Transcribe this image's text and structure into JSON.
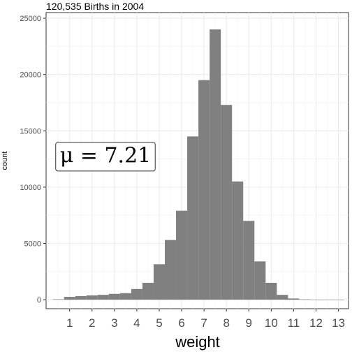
{
  "chart_data": {
    "type": "bar",
    "title": "120,535 Births in 2004",
    "xlabel": "weight",
    "ylabel": "count",
    "bin_width": 0.5,
    "bins": [
      {
        "x0": 0.25,
        "x1": 0.75,
        "count": 40
      },
      {
        "x0": 0.75,
        "x1": 1.25,
        "count": 250
      },
      {
        "x0": 1.25,
        "x1": 1.75,
        "count": 320
      },
      {
        "x0": 1.75,
        "x1": 2.25,
        "count": 380
      },
      {
        "x0": 2.25,
        "x1": 2.75,
        "count": 430
      },
      {
        "x0": 2.75,
        "x1": 3.25,
        "count": 520
      },
      {
        "x0": 3.25,
        "x1": 3.75,
        "count": 580
      },
      {
        "x0": 3.75,
        "x1": 4.25,
        "count": 950
      },
      {
        "x0": 4.25,
        "x1": 4.75,
        "count": 1500
      },
      {
        "x0": 4.75,
        "x1": 5.25,
        "count": 3150
      },
      {
        "x0": 5.25,
        "x1": 5.75,
        "count": 5300
      },
      {
        "x0": 5.75,
        "x1": 6.25,
        "count": 7900
      },
      {
        "x0": 6.25,
        "x1": 6.75,
        "count": 14500
      },
      {
        "x0": 6.75,
        "x1": 7.25,
        "count": 19500
      },
      {
        "x0": 7.25,
        "x1": 7.75,
        "count": 24000
      },
      {
        "x0": 7.75,
        "x1": 8.25,
        "count": 17300
      },
      {
        "x0": 8.25,
        "x1": 8.75,
        "count": 10500
      },
      {
        "x0": 8.75,
        "x1": 9.25,
        "count": 7000
      },
      {
        "x0": 9.25,
        "x1": 9.75,
        "count": 3400
      },
      {
        "x0": 9.75,
        "x1": 10.25,
        "count": 1500
      },
      {
        "x0": 10.25,
        "x1": 10.75,
        "count": 430
      },
      {
        "x0": 10.75,
        "x1": 11.25,
        "count": 110
      },
      {
        "x0": 11.25,
        "x1": 11.75,
        "count": 30
      },
      {
        "x0": 11.75,
        "x1": 12.25,
        "count": 8
      },
      {
        "x0": 12.25,
        "x1": 12.75,
        "count": 3
      },
      {
        "x0": 12.75,
        "x1": 13.25,
        "count": 1
      }
    ],
    "xlim": [
      -0.05,
      13.45
    ],
    "ylim": [
      -800,
      25500
    ],
    "x_ticks": [
      1,
      2,
      3,
      4,
      5,
      6,
      7,
      8,
      9,
      10,
      11,
      12,
      13
    ],
    "x_tick_labels": [
      "1",
      "2",
      "3",
      "4",
      "5",
      "6",
      "7",
      "8",
      "9",
      "10",
      "11",
      "12",
      "13"
    ],
    "y_ticks": [
      0,
      5000,
      10000,
      15000,
      20000,
      25000
    ],
    "y_tick_labels": [
      "0",
      "5000",
      "10000",
      "15000",
      "20000",
      "25000"
    ],
    "annotation": {
      "text": "μ = 7.21",
      "x": 2.6,
      "y": 12700
    },
    "grid": true,
    "bar_color": "#808080",
    "legend": "none"
  }
}
